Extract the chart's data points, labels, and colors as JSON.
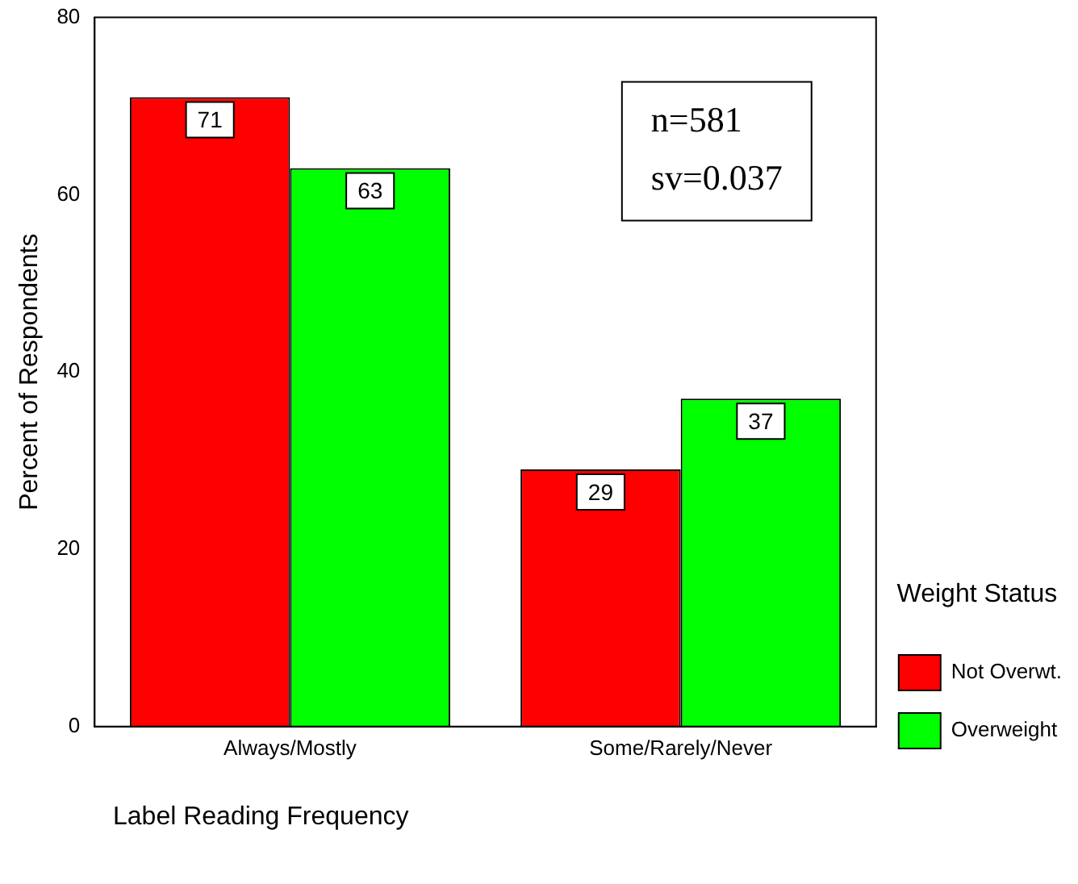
{
  "chart_data": {
    "type": "bar",
    "xlabel": "Label Reading Frequency",
    "ylabel": "Percent of Respondents",
    "legend_title": "Weight Status",
    "categories": [
      "Always/Mostly",
      "Some/Rarely/Never"
    ],
    "series": [
      {
        "name": "Not Overwt.",
        "color": "#ff0000",
        "values": [
          71,
          29
        ]
      },
      {
        "name": "Overweight",
        "color": "#00ff00",
        "values": [
          63,
          37
        ]
      }
    ],
    "ylim": [
      0,
      80
    ],
    "yticks": [
      0,
      20,
      40,
      60,
      80
    ],
    "grid": false,
    "legend": "right",
    "data_labels": true,
    "annotations": [
      "n=581",
      "sv=0.037"
    ]
  }
}
